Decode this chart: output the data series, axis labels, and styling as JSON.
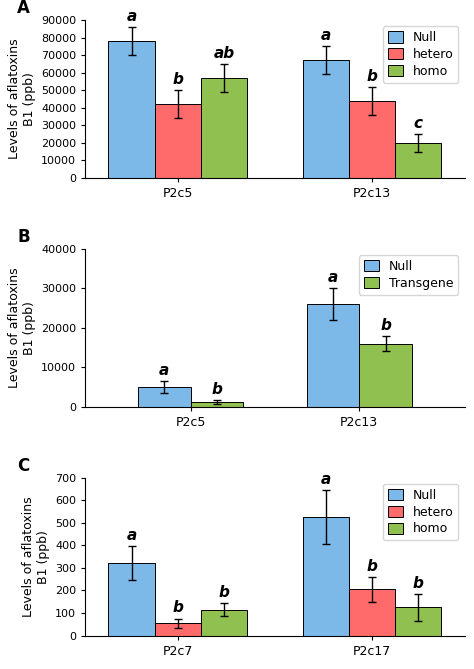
{
  "panel_A": {
    "groups": [
      "P2c5",
      "P2c13"
    ],
    "series": [
      "Null",
      "hetero",
      "homo"
    ],
    "values": {
      "P2c5": [
        78000,
        42000,
        57000
      ],
      "P2c13": [
        67000,
        44000,
        20000
      ]
    },
    "errors": {
      "P2c5": [
        8000,
        8000,
        8000
      ],
      "P2c13": [
        8000,
        8000,
        5000
      ]
    },
    "letters": {
      "P2c5": [
        "a",
        "b",
        "ab"
      ],
      "P2c13": [
        "a",
        "b",
        "c"
      ]
    },
    "ylabel": "Levels of aflatoxins\nB1 (ppb)",
    "ylim": [
      0,
      90000
    ],
    "yticks": [
      0,
      10000,
      20000,
      30000,
      40000,
      50000,
      60000,
      70000,
      80000,
      90000
    ],
    "legend": [
      "Null",
      "hetero",
      "homo"
    ],
    "panel_label": "A"
  },
  "panel_B": {
    "groups": [
      "P2c5",
      "P2c13"
    ],
    "series": [
      "Null",
      "Transgene"
    ],
    "values": {
      "P2c5": [
        5000,
        1200
      ],
      "P2c13": [
        26000,
        16000
      ]
    },
    "errors": {
      "P2c5": [
        1500,
        500
      ],
      "P2c13": [
        4000,
        2000
      ]
    },
    "letters": {
      "P2c5": [
        "a",
        "b"
      ],
      "P2c13": [
        "a",
        "b"
      ]
    },
    "ylabel": "Levels of aflatoxins\nB1 (ppb)",
    "ylim": [
      0,
      40000
    ],
    "yticks": [
      0,
      10000,
      20000,
      30000,
      40000
    ],
    "legend": [
      "Null",
      "Transgene"
    ],
    "panel_label": "B"
  },
  "panel_C": {
    "groups": [
      "P2c7",
      "P2c17"
    ],
    "series": [
      "Null",
      "hetero",
      "homo"
    ],
    "values": {
      "P2c7": [
        320,
        55,
        115
      ],
      "P2c17": [
        525,
        205,
        125
      ]
    },
    "errors": {
      "P2c7": [
        75,
        20,
        30
      ],
      "P2c17": [
        120,
        55,
        60
      ]
    },
    "letters": {
      "P2c7": [
        "a",
        "b",
        "b"
      ],
      "P2c17": [
        "a",
        "b",
        "b"
      ]
    },
    "ylabel": "Levels of aflatoxins\nB1 (ppb)",
    "ylim": [
      0,
      700
    ],
    "yticks": [
      0,
      100,
      200,
      300,
      400,
      500,
      600,
      700
    ],
    "legend": [
      "Null",
      "hetero",
      "homo"
    ],
    "panel_label": "C"
  },
  "colors": {
    "Null": "#7CB9E8",
    "hetero": "#FF6B6B",
    "homo": "#90C050",
    "Transgene": "#90C050"
  },
  "bar_width": 0.25,
  "edge_color": "black",
  "letter_fontsize": 11,
  "legend_fontsize": 9,
  "tick_fontsize": 8,
  "label_fontsize": 9
}
